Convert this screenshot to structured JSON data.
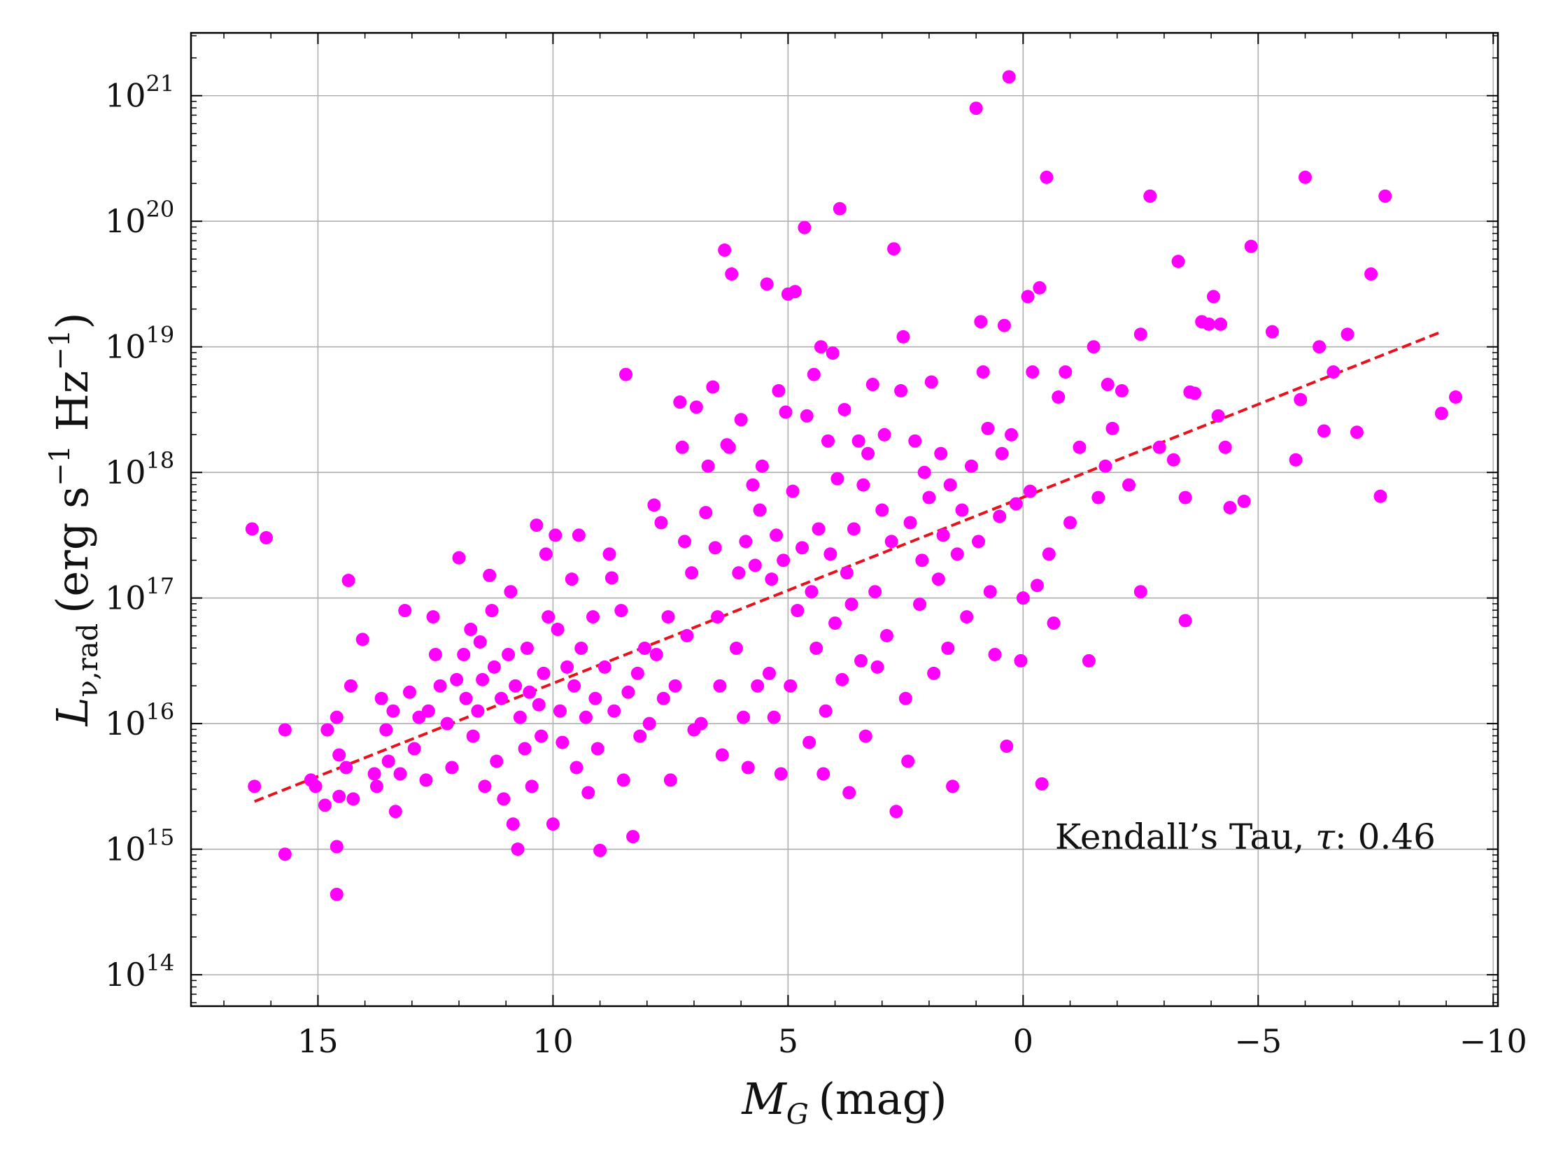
{
  "chart_data": {
    "type": "scatter",
    "title": "",
    "xlabel": "M_G (mag)",
    "xlabel_main": "M",
    "xlabel_sub": "G",
    "xlabel_unit": "(mag)",
    "ylabel": "L_ν,rad (erg s^-1 Hz^-1)",
    "ylabel_main": "L",
    "ylabel_sub": "ν,rad",
    "ylabel_unit_open": "(erg s",
    "ylabel_unit_exp1": "−1",
    "ylabel_unit_mid": " Hz",
    "ylabel_unit_exp2": "−1",
    "ylabel_unit_close": ")",
    "xlim": [
      17.7,
      -10.1
    ],
    "ylog": true,
    "ylim_log10": [
      13.75,
      21.5
    ],
    "xticks": [
      15,
      10,
      5,
      0,
      -5,
      -10
    ],
    "xtick_labels": [
      "15",
      "10",
      "5",
      "0",
      "−5",
      "−10"
    ],
    "yticks_log10": [
      14,
      15,
      16,
      17,
      18,
      19,
      20,
      21
    ],
    "ytick_base": "10",
    "ytick_exponents": [
      "14",
      "15",
      "16",
      "17",
      "18",
      "19",
      "20",
      "21"
    ],
    "grid": true,
    "annotation": {
      "prefix": "Kendall’s Tau, ",
      "symbol": "τ",
      "suffix": ": 0.46",
      "value": 0.46,
      "placement": "bottom-right"
    },
    "series": [
      {
        "name": "sources",
        "kind": "scatter",
        "color": "#ff00ff",
        "points": [
          [
            16.4,
            17.55
          ],
          [
            16.1,
            17.48
          ],
          [
            16.35,
            15.5
          ],
          [
            15.7,
            15.95
          ],
          [
            15.7,
            14.96
          ],
          [
            15.15,
            15.55
          ],
          [
            15.05,
            15.5
          ],
          [
            14.8,
            15.95
          ],
          [
            14.85,
            15.35
          ],
          [
            14.6,
            16.05
          ],
          [
            14.55,
            15.75
          ],
          [
            14.55,
            15.42
          ],
          [
            14.4,
            15.65
          ],
          [
            14.35,
            17.14
          ],
          [
            14.3,
            16.3
          ],
          [
            14.25,
            15.4
          ],
          [
            14.6,
            15.02
          ],
          [
            14.6,
            14.64
          ],
          [
            14.05,
            16.67
          ],
          [
            13.8,
            15.6
          ],
          [
            13.75,
            15.5
          ],
          [
            13.65,
            16.2
          ],
          [
            13.55,
            15.95
          ],
          [
            13.5,
            15.7
          ],
          [
            13.4,
            16.1
          ],
          [
            13.35,
            15.3
          ],
          [
            13.25,
            15.6
          ],
          [
            13.15,
            16.9
          ],
          [
            13.05,
            16.25
          ],
          [
            12.95,
            15.8
          ],
          [
            12.85,
            16.05
          ],
          [
            12.7,
            15.55
          ],
          [
            12.65,
            16.1
          ],
          [
            12.55,
            16.85
          ],
          [
            12.5,
            16.55
          ],
          [
            12.4,
            16.3
          ],
          [
            12.25,
            16.0
          ],
          [
            12.15,
            15.65
          ],
          [
            12.05,
            16.35
          ],
          [
            12.0,
            17.32
          ],
          [
            11.9,
            16.55
          ],
          [
            11.85,
            16.2
          ],
          [
            11.75,
            16.75
          ],
          [
            11.7,
            15.9
          ],
          [
            11.6,
            16.1
          ],
          [
            11.55,
            16.65
          ],
          [
            11.5,
            16.35
          ],
          [
            11.45,
            15.5
          ],
          [
            11.35,
            17.18
          ],
          [
            11.3,
            16.9
          ],
          [
            11.25,
            16.45
          ],
          [
            11.2,
            15.7
          ],
          [
            11.1,
            16.2
          ],
          [
            11.05,
            15.4
          ],
          [
            10.95,
            16.55
          ],
          [
            10.9,
            17.05
          ],
          [
            10.85,
            15.2
          ],
          [
            10.8,
            16.3
          ],
          [
            10.75,
            15.0
          ],
          [
            10.7,
            16.05
          ],
          [
            10.6,
            15.8
          ],
          [
            10.55,
            16.6
          ],
          [
            10.5,
            16.25
          ],
          [
            10.45,
            15.5
          ],
          [
            10.35,
            17.58
          ],
          [
            10.3,
            16.15
          ],
          [
            10.25,
            15.9
          ],
          [
            10.2,
            16.4
          ],
          [
            10.15,
            17.35
          ],
          [
            10.1,
            16.85
          ],
          [
            10.0,
            15.2
          ],
          [
            9.95,
            17.5
          ],
          [
            9.9,
            16.75
          ],
          [
            9.85,
            16.1
          ],
          [
            9.8,
            15.85
          ],
          [
            9.7,
            16.45
          ],
          [
            9.6,
            17.15
          ],
          [
            9.55,
            16.3
          ],
          [
            9.5,
            15.65
          ],
          [
            9.45,
            17.5
          ],
          [
            9.4,
            16.6
          ],
          [
            9.3,
            16.05
          ],
          [
            9.25,
            15.45
          ],
          [
            9.15,
            16.85
          ],
          [
            9.1,
            16.2
          ],
          [
            9.05,
            15.8
          ],
          [
            9.0,
            14.99
          ],
          [
            8.9,
            16.45
          ],
          [
            8.8,
            17.35
          ],
          [
            8.75,
            17.16
          ],
          [
            8.7,
            16.1
          ],
          [
            8.55,
            16.9
          ],
          [
            8.5,
            15.55
          ],
          [
            8.45,
            18.78
          ],
          [
            8.4,
            16.25
          ],
          [
            8.3,
            15.1
          ],
          [
            8.2,
            16.4
          ],
          [
            8.15,
            15.9
          ],
          [
            8.05,
            16.6
          ],
          [
            7.95,
            16.0
          ],
          [
            7.85,
            17.74
          ],
          [
            7.8,
            16.55
          ],
          [
            7.7,
            17.6
          ],
          [
            7.65,
            16.2
          ],
          [
            7.55,
            16.85
          ],
          [
            7.5,
            15.55
          ],
          [
            7.4,
            16.3
          ],
          [
            7.3,
            18.56
          ],
          [
            7.25,
            18.2
          ],
          [
            7.2,
            17.45
          ],
          [
            7.15,
            16.7
          ],
          [
            7.05,
            17.2
          ],
          [
            7.0,
            15.95
          ],
          [
            6.95,
            18.52
          ],
          [
            6.85,
            16.0
          ],
          [
            6.75,
            17.68
          ],
          [
            6.7,
            18.05
          ],
          [
            6.6,
            18.68
          ],
          [
            6.55,
            17.4
          ],
          [
            6.5,
            16.85
          ],
          [
            6.45,
            16.3
          ],
          [
            6.4,
            15.75
          ],
          [
            6.35,
            19.77
          ],
          [
            6.3,
            18.22
          ],
          [
            6.25,
            18.2
          ],
          [
            6.2,
            19.58
          ],
          [
            6.1,
            16.6
          ],
          [
            6.05,
            17.2
          ],
          [
            6.0,
            18.42
          ],
          [
            5.95,
            16.05
          ],
          [
            5.9,
            17.45
          ],
          [
            5.85,
            15.65
          ],
          [
            5.75,
            17.9
          ],
          [
            5.7,
            17.26
          ],
          [
            5.65,
            16.3
          ],
          [
            5.6,
            17.7
          ],
          [
            5.55,
            18.05
          ],
          [
            5.45,
            19.5
          ],
          [
            5.4,
            16.4
          ],
          [
            5.35,
            17.15
          ],
          [
            5.3,
            16.05
          ],
          [
            5.25,
            17.5
          ],
          [
            5.2,
            18.65
          ],
          [
            5.15,
            15.6
          ],
          [
            5.1,
            17.3
          ],
          [
            5.05,
            18.48
          ],
          [
            5.0,
            19.42
          ],
          [
            4.95,
            16.3
          ],
          [
            4.9,
            17.85
          ],
          [
            4.85,
            19.44
          ],
          [
            4.8,
            16.9
          ],
          [
            4.7,
            17.4
          ],
          [
            4.65,
            19.95
          ],
          [
            4.6,
            18.45
          ],
          [
            4.55,
            15.85
          ],
          [
            4.5,
            17.05
          ],
          [
            4.45,
            18.78
          ],
          [
            4.4,
            16.6
          ],
          [
            4.35,
            17.55
          ],
          [
            4.3,
            19.0
          ],
          [
            4.25,
            15.6
          ],
          [
            4.2,
            16.1
          ],
          [
            4.15,
            18.25
          ],
          [
            4.1,
            17.35
          ],
          [
            4.05,
            18.95
          ],
          [
            4.0,
            16.8
          ],
          [
            3.95,
            17.95
          ],
          [
            3.9,
            20.1
          ],
          [
            3.85,
            16.35
          ],
          [
            3.8,
            18.5
          ],
          [
            3.75,
            17.2
          ],
          [
            3.7,
            15.45
          ],
          [
            3.65,
            16.95
          ],
          [
            3.6,
            17.55
          ],
          [
            3.5,
            18.25
          ],
          [
            3.45,
            16.5
          ],
          [
            3.4,
            17.9
          ],
          [
            3.35,
            15.9
          ],
          [
            3.3,
            18.15
          ],
          [
            3.2,
            18.7
          ],
          [
            3.15,
            17.05
          ],
          [
            3.1,
            16.45
          ],
          [
            3.0,
            17.7
          ],
          [
            2.95,
            18.3
          ],
          [
            2.9,
            16.7
          ],
          [
            2.8,
            17.45
          ],
          [
            2.75,
            19.78
          ],
          [
            2.7,
            15.3
          ],
          [
            2.6,
            18.65
          ],
          [
            2.55,
            19.08
          ],
          [
            2.5,
            16.2
          ],
          [
            2.45,
            15.7
          ],
          [
            2.4,
            17.6
          ],
          [
            2.3,
            18.25
          ],
          [
            2.2,
            16.95
          ],
          [
            2.15,
            17.3
          ],
          [
            2.1,
            18.0
          ],
          [
            2.0,
            17.8
          ],
          [
            1.95,
            18.72
          ],
          [
            1.9,
            16.4
          ],
          [
            1.8,
            17.15
          ],
          [
            1.75,
            18.15
          ],
          [
            1.7,
            17.5
          ],
          [
            1.6,
            16.6
          ],
          [
            1.55,
            17.9
          ],
          [
            1.5,
            15.5
          ],
          [
            1.4,
            17.35
          ],
          [
            1.3,
            17.7
          ],
          [
            1.2,
            16.85
          ],
          [
            1.1,
            18.05
          ],
          [
            1.0,
            20.9
          ],
          [
            0.95,
            17.45
          ],
          [
            0.9,
            19.2
          ],
          [
            0.85,
            18.8
          ],
          [
            0.75,
            18.35
          ],
          [
            0.7,
            17.05
          ],
          [
            0.6,
            16.55
          ],
          [
            0.5,
            17.65
          ],
          [
            0.45,
            18.15
          ],
          [
            0.4,
            19.17
          ],
          [
            0.35,
            15.82
          ],
          [
            0.3,
            21.15
          ],
          [
            0.25,
            18.3
          ],
          [
            0.15,
            17.75
          ],
          [
            0.05,
            16.5
          ],
          [
            0.0,
            17.0
          ],
          [
            -0.1,
            19.4
          ],
          [
            -0.15,
            17.85
          ],
          [
            -0.2,
            18.8
          ],
          [
            -0.3,
            17.1
          ],
          [
            -0.35,
            19.47
          ],
          [
            -0.4,
            15.52
          ],
          [
            -0.5,
            20.35
          ],
          [
            -0.55,
            17.35
          ],
          [
            -0.65,
            16.8
          ],
          [
            -0.75,
            18.6
          ],
          [
            -0.9,
            18.8
          ],
          [
            -1.0,
            17.6
          ],
          [
            -1.2,
            18.2
          ],
          [
            -1.4,
            16.5
          ],
          [
            -1.5,
            19.0
          ],
          [
            -1.6,
            17.8
          ],
          [
            -1.75,
            18.05
          ],
          [
            -1.8,
            18.7
          ],
          [
            -1.9,
            18.35
          ],
          [
            -2.1,
            18.65
          ],
          [
            -2.25,
            17.9
          ],
          [
            -2.5,
            19.1
          ],
          [
            -2.5,
            17.05
          ],
          [
            -2.7,
            20.2
          ],
          [
            -2.9,
            18.2
          ],
          [
            -3.2,
            18.1
          ],
          [
            -3.3,
            19.68
          ],
          [
            -3.45,
            17.8
          ],
          [
            -3.45,
            16.82
          ],
          [
            -3.55,
            18.64
          ],
          [
            -3.65,
            18.63
          ],
          [
            -3.8,
            19.2
          ],
          [
            -3.95,
            19.18
          ],
          [
            -4.05,
            19.4
          ],
          [
            -4.15,
            18.45
          ],
          [
            -4.2,
            19.18
          ],
          [
            -4.3,
            18.2
          ],
          [
            -4.4,
            17.72
          ],
          [
            -4.7,
            17.77
          ],
          [
            -4.85,
            19.8
          ],
          [
            -5.3,
            19.12
          ],
          [
            -5.8,
            18.1
          ],
          [
            -5.9,
            18.58
          ],
          [
            -6.0,
            20.35
          ],
          [
            -6.3,
            19.0
          ],
          [
            -6.4,
            18.33
          ],
          [
            -6.6,
            18.8
          ],
          [
            -6.9,
            19.1
          ],
          [
            -7.1,
            18.32
          ],
          [
            -7.4,
            19.58
          ],
          [
            -7.6,
            17.81
          ],
          [
            -7.7,
            20.2
          ],
          [
            -8.9,
            18.47
          ],
          [
            -9.2,
            18.6
          ]
        ]
      },
      {
        "name": "fit",
        "kind": "line",
        "style": "dashed",
        "color": "#e8121e",
        "x": [
          16.35,
          -8.9
        ],
        "y_log10": [
          15.38,
          19.12
        ]
      }
    ]
  }
}
